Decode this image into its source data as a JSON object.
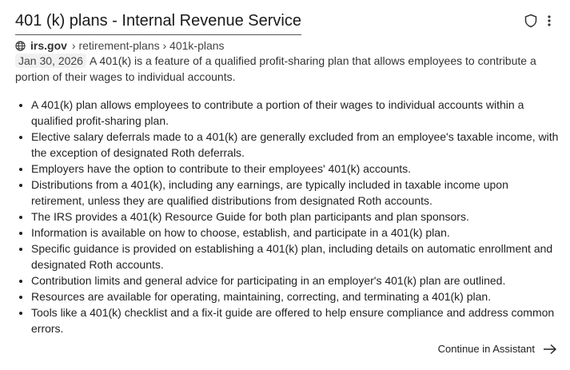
{
  "result": {
    "title": "401 (k) plans - Internal Revenue Service",
    "domain": "irs.gov",
    "breadcrumb": "› retirement-plans › 401k-plans",
    "date": "Jan 30, 2026",
    "snippet": "A 401(k) is a feature of a qualified profit-sharing plan that allows employees to contribute a portion of their wages to individual accounts.",
    "bullets": [
      "A 401(k) plan allows employees to contribute a portion of their wages to individual accounts within a qualified profit-sharing plan.",
      "Elective salary deferrals made to a 401(k) are generally excluded from an employee's taxable income, with the exception of designated Roth deferrals.",
      "Employers have the option to contribute to their employees' 401(k) accounts.",
      "Distributions from a 401(k), including any earnings, are typically included in taxable income upon retirement, unless they are qualified distributions from designated Roth accounts.",
      "The IRS provides a 401(k) Resource Guide for both plan participants and plan sponsors.",
      "Information is available on how to choose, establish, and participate in a 401(k) plan.",
      "Specific guidance is provided on establishing a 401(k) plan, including details on automatic enrollment and designated Roth accounts.",
      "Contribution limits and general advice for participating in an employer's 401(k) plan are outlined.",
      "Resources are available for operating, maintaining, correcting, and terminating a 401(k) plan.",
      "Tools like a 401(k) checklist and a fix-it guide are offered to help ensure compliance and address common errors."
    ]
  },
  "continue_label": "Continue in Assistant",
  "icons": {
    "shield": "shield-icon",
    "more": "more-vertical-icon",
    "globe": "globe-icon",
    "arrow": "arrow-right-icon"
  }
}
